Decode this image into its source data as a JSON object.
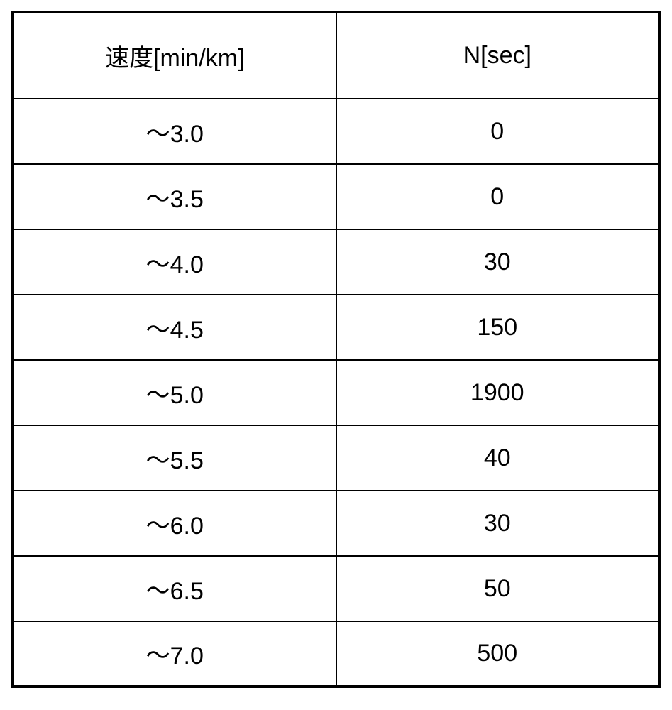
{
  "table": {
    "type": "table",
    "columns": [
      {
        "label": "速度[min/km]",
        "width": "50%",
        "align": "center"
      },
      {
        "label": "N[sec]",
        "width": "50%",
        "align": "center"
      }
    ],
    "rows": [
      {
        "speed": "～3.0",
        "n": "0"
      },
      {
        "speed": "～3.5",
        "n": "0"
      },
      {
        "speed": "～4.0",
        "n": "30"
      },
      {
        "speed": "～4.5",
        "n": "150"
      },
      {
        "speed": "～5.0",
        "n": "1900"
      },
      {
        "speed": "～5.5",
        "n": "40"
      },
      {
        "speed": "～6.0",
        "n": "30"
      },
      {
        "speed": "～6.5",
        "n": "50"
      },
      {
        "speed": "～7.0",
        "n": "500"
      }
    ],
    "border_color": "#000000",
    "outer_border_width": 4,
    "inner_border_width": 2,
    "background_color": "#ffffff",
    "text_color": "#000000",
    "header_fontsize": 34,
    "cell_fontsize": 34,
    "header_row_height": 122,
    "data_row_height": 92
  }
}
